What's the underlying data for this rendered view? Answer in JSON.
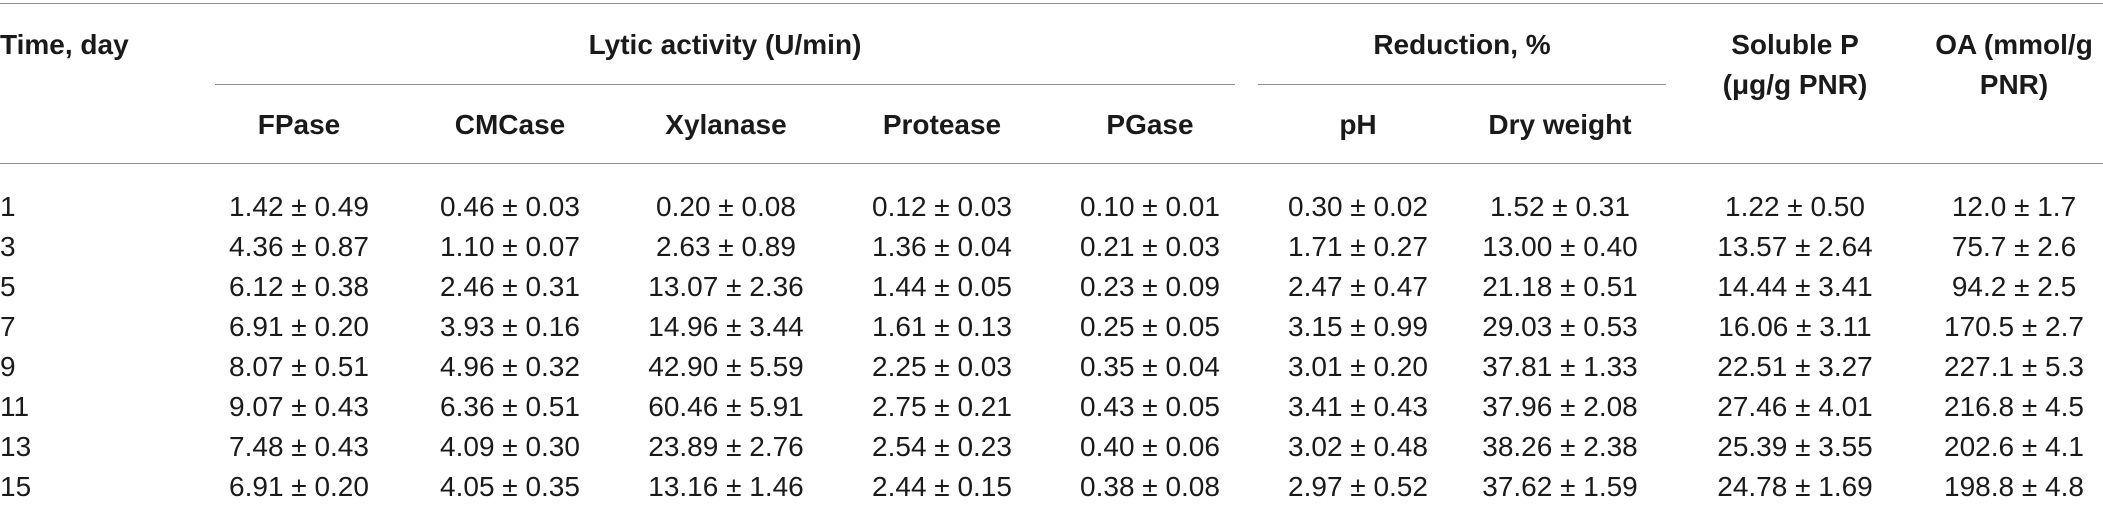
{
  "table": {
    "headers": {
      "time": "Time, day",
      "lytic_group": "Lytic activity (U/min)",
      "reduction_group": "Reduction, %",
      "soluble_p_line1": "Soluble P",
      "soluble_p_line2": "(μg/g PNR)",
      "oa_line1": "OA (mmol/g",
      "oa_line2": "PNR)",
      "fpase": "FPase",
      "cmcase": "CMCase",
      "xylanase": "Xylanase",
      "protease": "Protease",
      "pgase": "PGase",
      "ph": "pH",
      "dry_weight": "Dry weight"
    },
    "rows": [
      [
        "1",
        "1.42 ± 0.49",
        "0.46 ± 0.03",
        "0.20 ± 0.08",
        "0.12 ± 0.03",
        "0.10 ± 0.01",
        "0.30 ± 0.02",
        "1.52 ± 0.31",
        "1.22 ± 0.50",
        "12.0 ± 1.7"
      ],
      [
        "3",
        "4.36 ± 0.87",
        "1.10 ± 0.07",
        "2.63 ± 0.89",
        "1.36 ± 0.04",
        "0.21 ± 0.03",
        "1.71 ± 0.27",
        "13.00 ± 0.40",
        "13.57 ± 2.64",
        "75.7 ± 2.6"
      ],
      [
        "5",
        "6.12 ± 0.38",
        "2.46 ± 0.31",
        "13.07 ± 2.36",
        "1.44 ± 0.05",
        "0.23 ± 0.09",
        "2.47 ± 0.47",
        "21.18 ± 0.51",
        "14.44 ± 3.41",
        "94.2 ± 2.5"
      ],
      [
        "7",
        "6.91 ± 0.20",
        "3.93 ± 0.16",
        "14.96 ± 3.44",
        "1.61 ± 0.13",
        "0.25 ± 0.05",
        "3.15 ± 0.99",
        "29.03 ± 0.53",
        "16.06 ± 3.11",
        "170.5 ± 2.7"
      ],
      [
        "9",
        "8.07 ± 0.51",
        "4.96 ± 0.32",
        "42.90 ± 5.59",
        "2.25 ± 0.03",
        "0.35 ± 0.04",
        "3.01 ± 0.20",
        "37.81 ± 1.33",
        "22.51 ± 3.27",
        "227.1 ± 5.3"
      ],
      [
        "11",
        "9.07 ± 0.43",
        "6.36 ± 0.51",
        "60.46 ± 5.91",
        "2.75 ± 0.21",
        "0.43 ± 0.05",
        "3.41 ± 0.43",
        "37.96 ± 2.08",
        "27.46 ± 4.01",
        "216.8 ± 4.5"
      ],
      [
        "13",
        "7.48 ± 0.43",
        "4.09 ± 0.30",
        "23.89 ± 2.76",
        "2.54 ± 0.23",
        "0.40 ± 0.06",
        "3.02 ± 0.48",
        "38.26 ± 2.38",
        "25.39 ± 3.55",
        "202.6 ± 4.1"
      ],
      [
        "15",
        "6.91 ± 0.20",
        "4.05 ± 0.35",
        "13.16 ± 1.46",
        "2.44 ± 0.15",
        "0.38 ± 0.08",
        "2.97 ± 0.52",
        "37.62 ± 1.59",
        "24.78 ± 1.69",
        "198.8 ± 4.8"
      ]
    ]
  }
}
